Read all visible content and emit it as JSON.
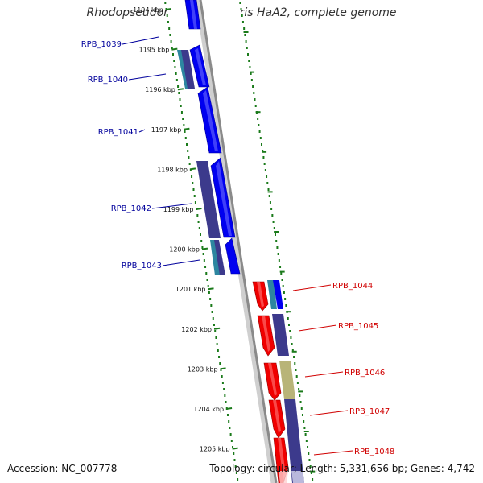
{
  "title": "Rhodopseudomonas palustris HaA2, complete genome",
  "footer": {
    "accession": "Accession: NC_007778",
    "summary": "Topology: circular; Length: 5,331,656 bp; Genes: 4,742"
  },
  "colors": {
    "left_gene_label": "#00009c",
    "right_gene_label": "#d00000",
    "dots": "#1a7a1a",
    "blue": "#0000f0",
    "navy": "#3c3a8c",
    "red": "#f00000",
    "teal": "#2d86a0",
    "olive": "#b8b478"
  },
  "ticks": [
    {
      "label": "1194 kbp"
    },
    {
      "label": "1195 kbp"
    },
    {
      "label": "1196 kbp"
    },
    {
      "label": "1197 kbp"
    },
    {
      "label": "1198 kbp"
    },
    {
      "label": "1199 kbp"
    },
    {
      "label": "1200 kbp"
    },
    {
      "label": "1201 kbp"
    },
    {
      "label": "1202 kbp"
    },
    {
      "label": "1203 kbp"
    },
    {
      "label": "1204 kbp"
    },
    {
      "label": "1205 kbp"
    }
  ],
  "gene_labels_left": [
    "RPB_1039",
    "RPB_1040",
    "RPB_1041",
    "RPB_1042",
    "RPB_1043"
  ],
  "gene_labels_right": [
    "RPB_1044",
    "RPB_1045",
    "RPB_1046",
    "RPB_1047",
    "RPB_1048"
  ]
}
